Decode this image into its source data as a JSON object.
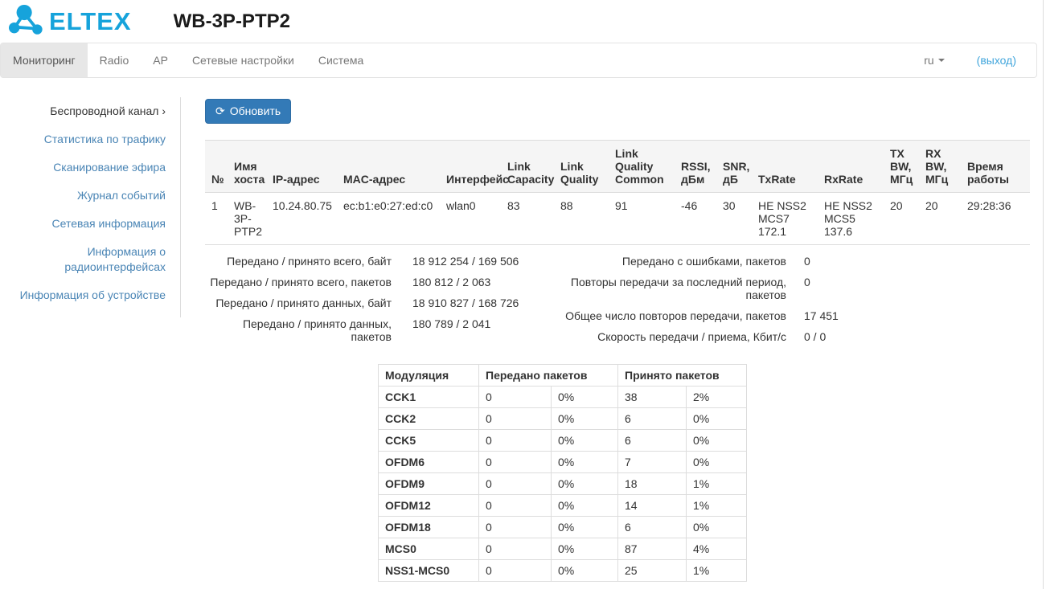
{
  "header": {
    "brand": "ELTEX",
    "title": "WB-3P-PTP2"
  },
  "navbar": {
    "tabs": [
      {
        "label": "Мониторинг",
        "active": true
      },
      {
        "label": "Radio",
        "active": false
      },
      {
        "label": "AP",
        "active": false
      },
      {
        "label": "Сетевые настройки",
        "active": false
      },
      {
        "label": "Система",
        "active": false
      }
    ],
    "language": "ru",
    "logout_label": "(выход)"
  },
  "sidebar": {
    "items": [
      {
        "label": "Беспроводной канал",
        "suffix": "›",
        "active": true
      },
      {
        "label": "Статистика по трафику",
        "active": false
      },
      {
        "label": "Сканирование эфира",
        "active": false
      },
      {
        "label": "Журнал событий",
        "active": false
      },
      {
        "label": "Сетевая информация",
        "active": false
      },
      {
        "label": "Информация о радиоинтерфейсах",
        "active": false
      },
      {
        "label": "Информация об устройстве",
        "active": false
      }
    ]
  },
  "main": {
    "refresh_label": "Обновить",
    "refresh_icon": "⟳",
    "link_table": {
      "headers": [
        "№",
        "Имя хоста",
        "IP-адрес",
        "MAC-адрес",
        "Интерфейс",
        "Link Capacity",
        "Link Quality",
        "Link Quality Common",
        "RSSI, дБм",
        "SNR, дБ",
        "TxRate",
        "RxRate",
        "TX BW, МГц",
        "RX BW, МГц",
        "Время работы"
      ],
      "rows": [
        [
          "1",
          "WB-\n3P-\nPTP2",
          "10.24.80.75",
          "ec:b1:e0:27:ed:c0",
          "wlan0",
          "83",
          "88",
          "91",
          "-46",
          "30",
          "HE NSS2\nMCS7\n172.1",
          "HE NSS2\nMCS5\n137.6",
          "20",
          "20",
          "29:28:36"
        ]
      ]
    },
    "stats_left": [
      {
        "label": "Передано / принято всего, байт",
        "value": "18 912 254 / 169 506"
      },
      {
        "label": "Передано / принято всего, пакетов",
        "value": "180 812 / 2 063"
      },
      {
        "label": "Передано / принято данных, байт",
        "value": "18 910 827 / 168 726"
      },
      {
        "label": "Передано / принято данных, пакетов",
        "value": "180 789 / 2 041"
      }
    ],
    "stats_right": [
      {
        "label": "Передано с ошибками, пакетов",
        "value": "0"
      },
      {
        "label": "Повторы передачи за последний период, пакетов",
        "value": "0"
      },
      {
        "label": "Общее число повторов передачи, пакетов",
        "value": "17 451"
      },
      {
        "label": "Скорость передачи / приема, Кбит/с",
        "value": "0 / 0"
      }
    ],
    "modulation_table": {
      "header_groups": [
        {
          "label": "Модуляция",
          "colspan": 1
        },
        {
          "label": "Передано пакетов",
          "colspan": 2
        },
        {
          "label": "Принято пакетов",
          "colspan": 2
        }
      ],
      "rows": [
        [
          "CCK1",
          "0",
          "0%",
          "38",
          "2%"
        ],
        [
          "CCK2",
          "0",
          "0%",
          "6",
          "0%"
        ],
        [
          "CCK5",
          "0",
          "0%",
          "6",
          "0%"
        ],
        [
          "OFDM6",
          "0",
          "0%",
          "7",
          "0%"
        ],
        [
          "OFDM9",
          "0",
          "0%",
          "18",
          "1%"
        ],
        [
          "OFDM12",
          "0",
          "0%",
          "14",
          "1%"
        ],
        [
          "OFDM18",
          "0",
          "0%",
          "6",
          "0%"
        ],
        [
          "MCS0",
          "0",
          "0%",
          "87",
          "4%"
        ],
        [
          "NSS1-MCS0",
          "0",
          "0%",
          "25",
          "1%"
        ]
      ]
    }
  },
  "colors": {
    "brand_blue": "#16a3db",
    "link_blue": "#4a85b5",
    "logout_blue": "#42a6dc",
    "button_blue": "#337ab7",
    "active_tab_bg": "#e7e7e7",
    "table_border": "#dddddd",
    "table_header_bg": "#f5f5f5"
  }
}
